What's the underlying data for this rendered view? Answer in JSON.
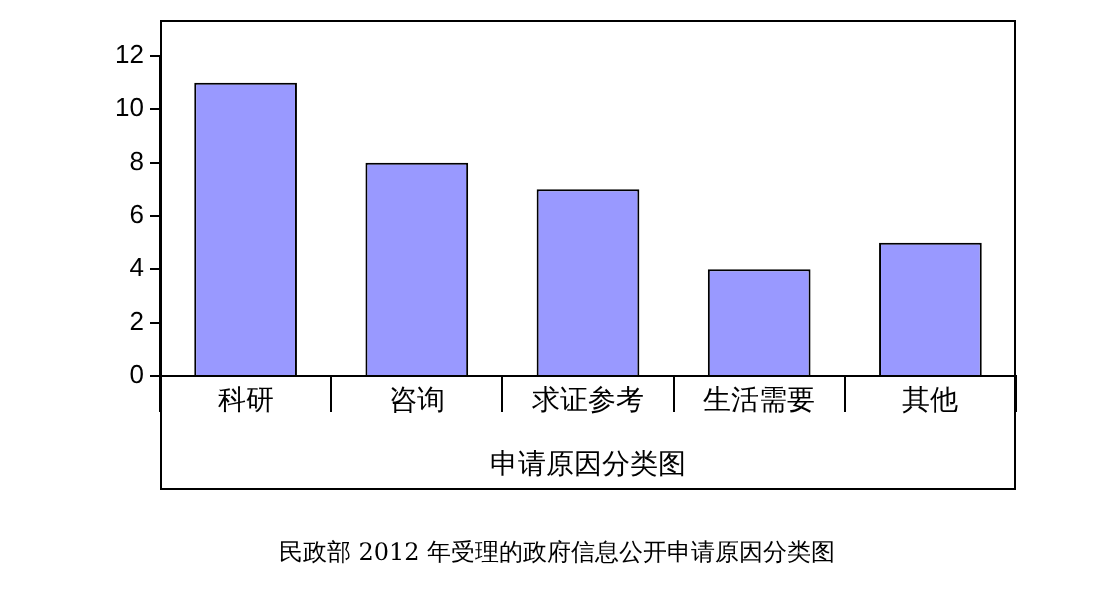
{
  "chart_data": {
    "type": "bar",
    "xlabel": "申请原因分类图",
    "categories": [
      "科研",
      "咨询",
      "求证参考",
      "生活需要",
      "其他"
    ],
    "values": [
      11,
      8,
      7,
      4,
      5
    ],
    "color": "#9999ff",
    "ylim": [
      0,
      12
    ],
    "yticks": [
      0,
      2,
      4,
      6,
      8,
      10,
      12
    ],
    "grid": false,
    "legend": false,
    "annotations": [
      "民政部 2012 年受理的政府信息公开申请原因分类图"
    ]
  }
}
